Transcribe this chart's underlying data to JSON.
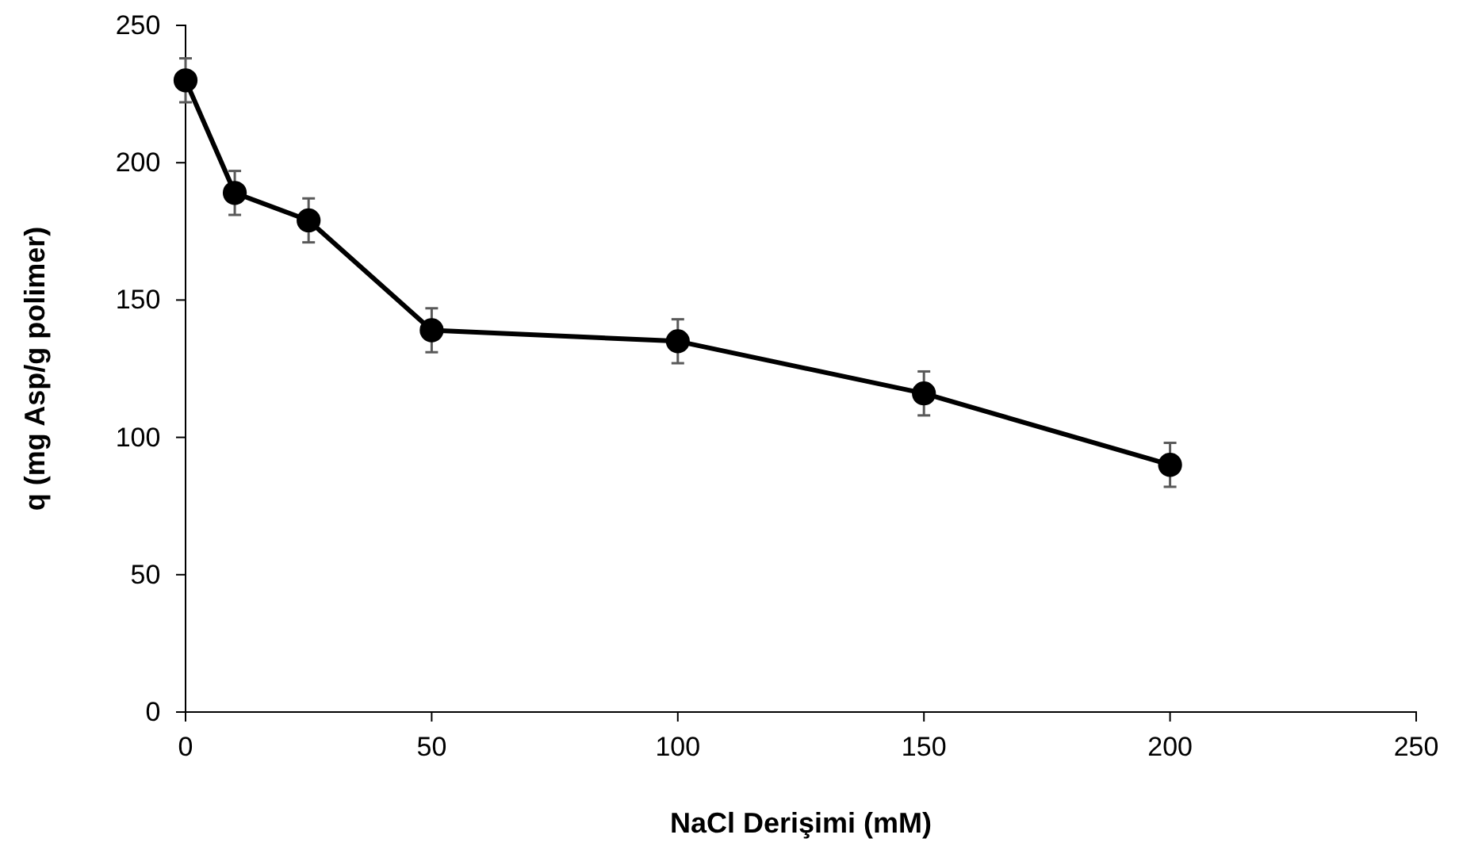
{
  "chart_data": {
    "type": "line",
    "xlabel": "NaCl Derişimi (mM)",
    "ylabel": "q (mg Asp/g polimer)",
    "x": [
      0,
      10,
      25,
      50,
      100,
      150,
      200
    ],
    "series": [
      {
        "color": "#000000",
        "values": [
          230,
          189,
          179,
          139,
          135,
          116,
          90
        ],
        "errors": [
          8,
          8,
          8,
          8,
          8,
          8,
          8
        ]
      }
    ],
    "xlim": [
      0,
      250
    ],
    "xticks": [
      0,
      50,
      100,
      150,
      200,
      250
    ],
    "ylim": [
      0,
      250
    ],
    "yticks": [
      0,
      50,
      100,
      150,
      200,
      250
    ],
    "marker": "circle",
    "line_style": "solid",
    "grid": false
  }
}
